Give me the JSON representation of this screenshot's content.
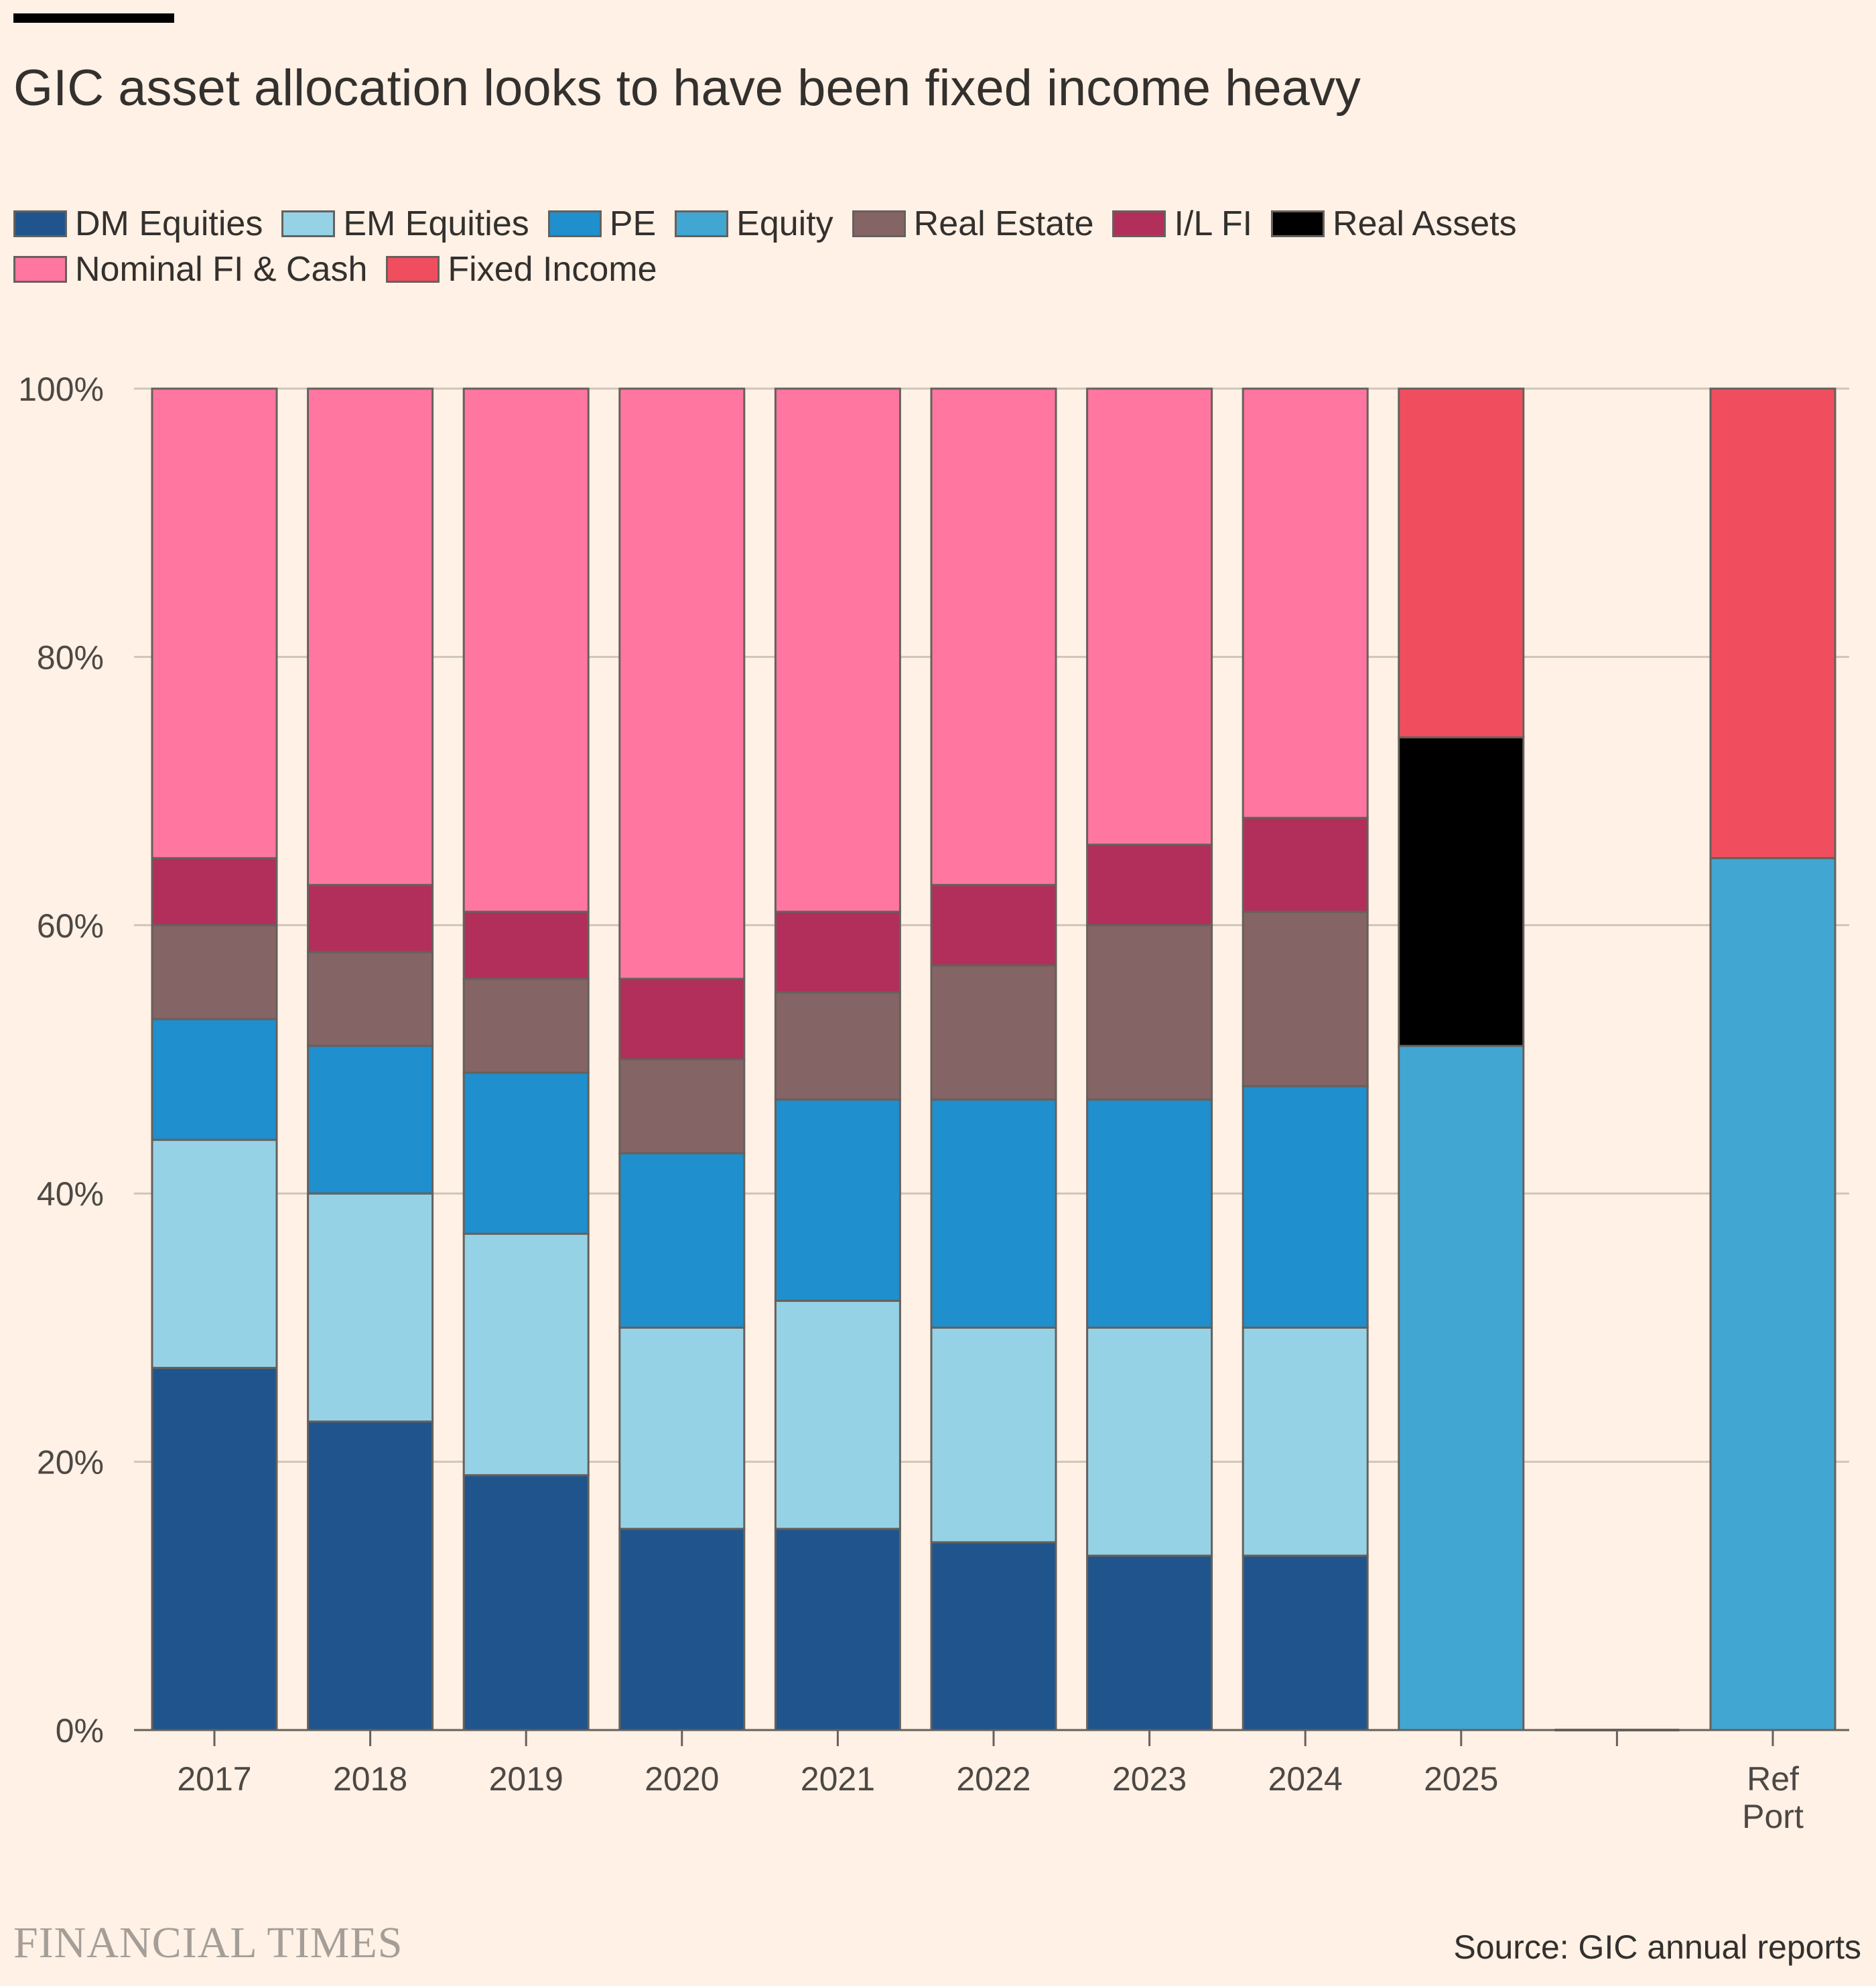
{
  "title": "GIC asset allocation looks to have been fixed income heavy",
  "footer": {
    "brand": "FINANCIAL TIMES",
    "source": "Source: GIC annual reports"
  },
  "legend_rows": [
    [
      {
        "label": "DM Equities",
        "color": "#1F558C"
      },
      {
        "label": "EM Equities",
        "color": "#96D2E6"
      },
      {
        "label": "PE",
        "color": "#1F8FCE"
      },
      {
        "label": "Equity",
        "color": "#42A6D3"
      },
      {
        "label": "Real Estate",
        "color": "#856465"
      },
      {
        "label": "I/L FI",
        "color": "#B12F5A"
      },
      {
        "label": "Real Assets",
        "color": "#000000"
      }
    ],
    [
      {
        "label": "Nominal FI & Cash",
        "color": "#FF77A0"
      },
      {
        "label": "Fixed Income",
        "color": "#F04E5E"
      }
    ]
  ],
  "chart_data": {
    "type": "bar",
    "stacked": true,
    "title": "GIC asset allocation looks to have been fixed income heavy",
    "xlabel": "",
    "ylabel": "",
    "ylim": [
      0,
      100
    ],
    "y_ticks": [
      0,
      20,
      40,
      60,
      80,
      100
    ],
    "y_tick_labels": [
      "0%",
      "20%",
      "40%",
      "60%",
      "80%",
      "100%"
    ],
    "gridlines": true,
    "legend_position": "top",
    "categories": [
      [
        "2017"
      ],
      [
        "2018"
      ],
      [
        "2019"
      ],
      [
        "2020"
      ],
      [
        "2021"
      ],
      [
        "2022"
      ],
      [
        "2023"
      ],
      [
        "2024"
      ],
      [
        "2025"
      ],
      [
        ""
      ],
      [
        "Ref",
        "Port"
      ]
    ],
    "series": [
      {
        "name": "DM Equities",
        "color": "#1F558C",
        "values": [
          27,
          23,
          19,
          15,
          15,
          14,
          13,
          13,
          0,
          0,
          0
        ]
      },
      {
        "name": "EM Equities",
        "color": "#96D2E6",
        "values": [
          17,
          17,
          18,
          15,
          17,
          16,
          17,
          17,
          0,
          0,
          0
        ]
      },
      {
        "name": "PE",
        "color": "#1F8FCE",
        "values": [
          9,
          11,
          12,
          13,
          15,
          17,
          17,
          18,
          0,
          0,
          0
        ]
      },
      {
        "name": "Equity",
        "color": "#42A6D3",
        "values": [
          0,
          0,
          0,
          0,
          0,
          0,
          0,
          0,
          51,
          0,
          65
        ]
      },
      {
        "name": "Real Estate",
        "color": "#856465",
        "values": [
          7,
          7,
          7,
          7,
          8,
          10,
          13,
          13,
          0,
          0,
          0
        ]
      },
      {
        "name": "I/L FI",
        "color": "#B12F5A",
        "values": [
          5,
          5,
          5,
          6,
          6,
          6,
          6,
          7,
          0,
          0,
          0
        ]
      },
      {
        "name": "Real Assets",
        "color": "#000000",
        "values": [
          0,
          0,
          0,
          0,
          0,
          0,
          0,
          0,
          23,
          0,
          0
        ]
      },
      {
        "name": "Nominal FI & Cash",
        "color": "#FF77A0",
        "values": [
          35,
          37,
          39,
          44,
          39,
          37,
          34,
          32,
          0,
          0,
          0
        ]
      },
      {
        "name": "Fixed Income",
        "color": "#F04E5E",
        "values": [
          0,
          0,
          0,
          0,
          0,
          0,
          0,
          0,
          26,
          0,
          35
        ]
      }
    ]
  }
}
